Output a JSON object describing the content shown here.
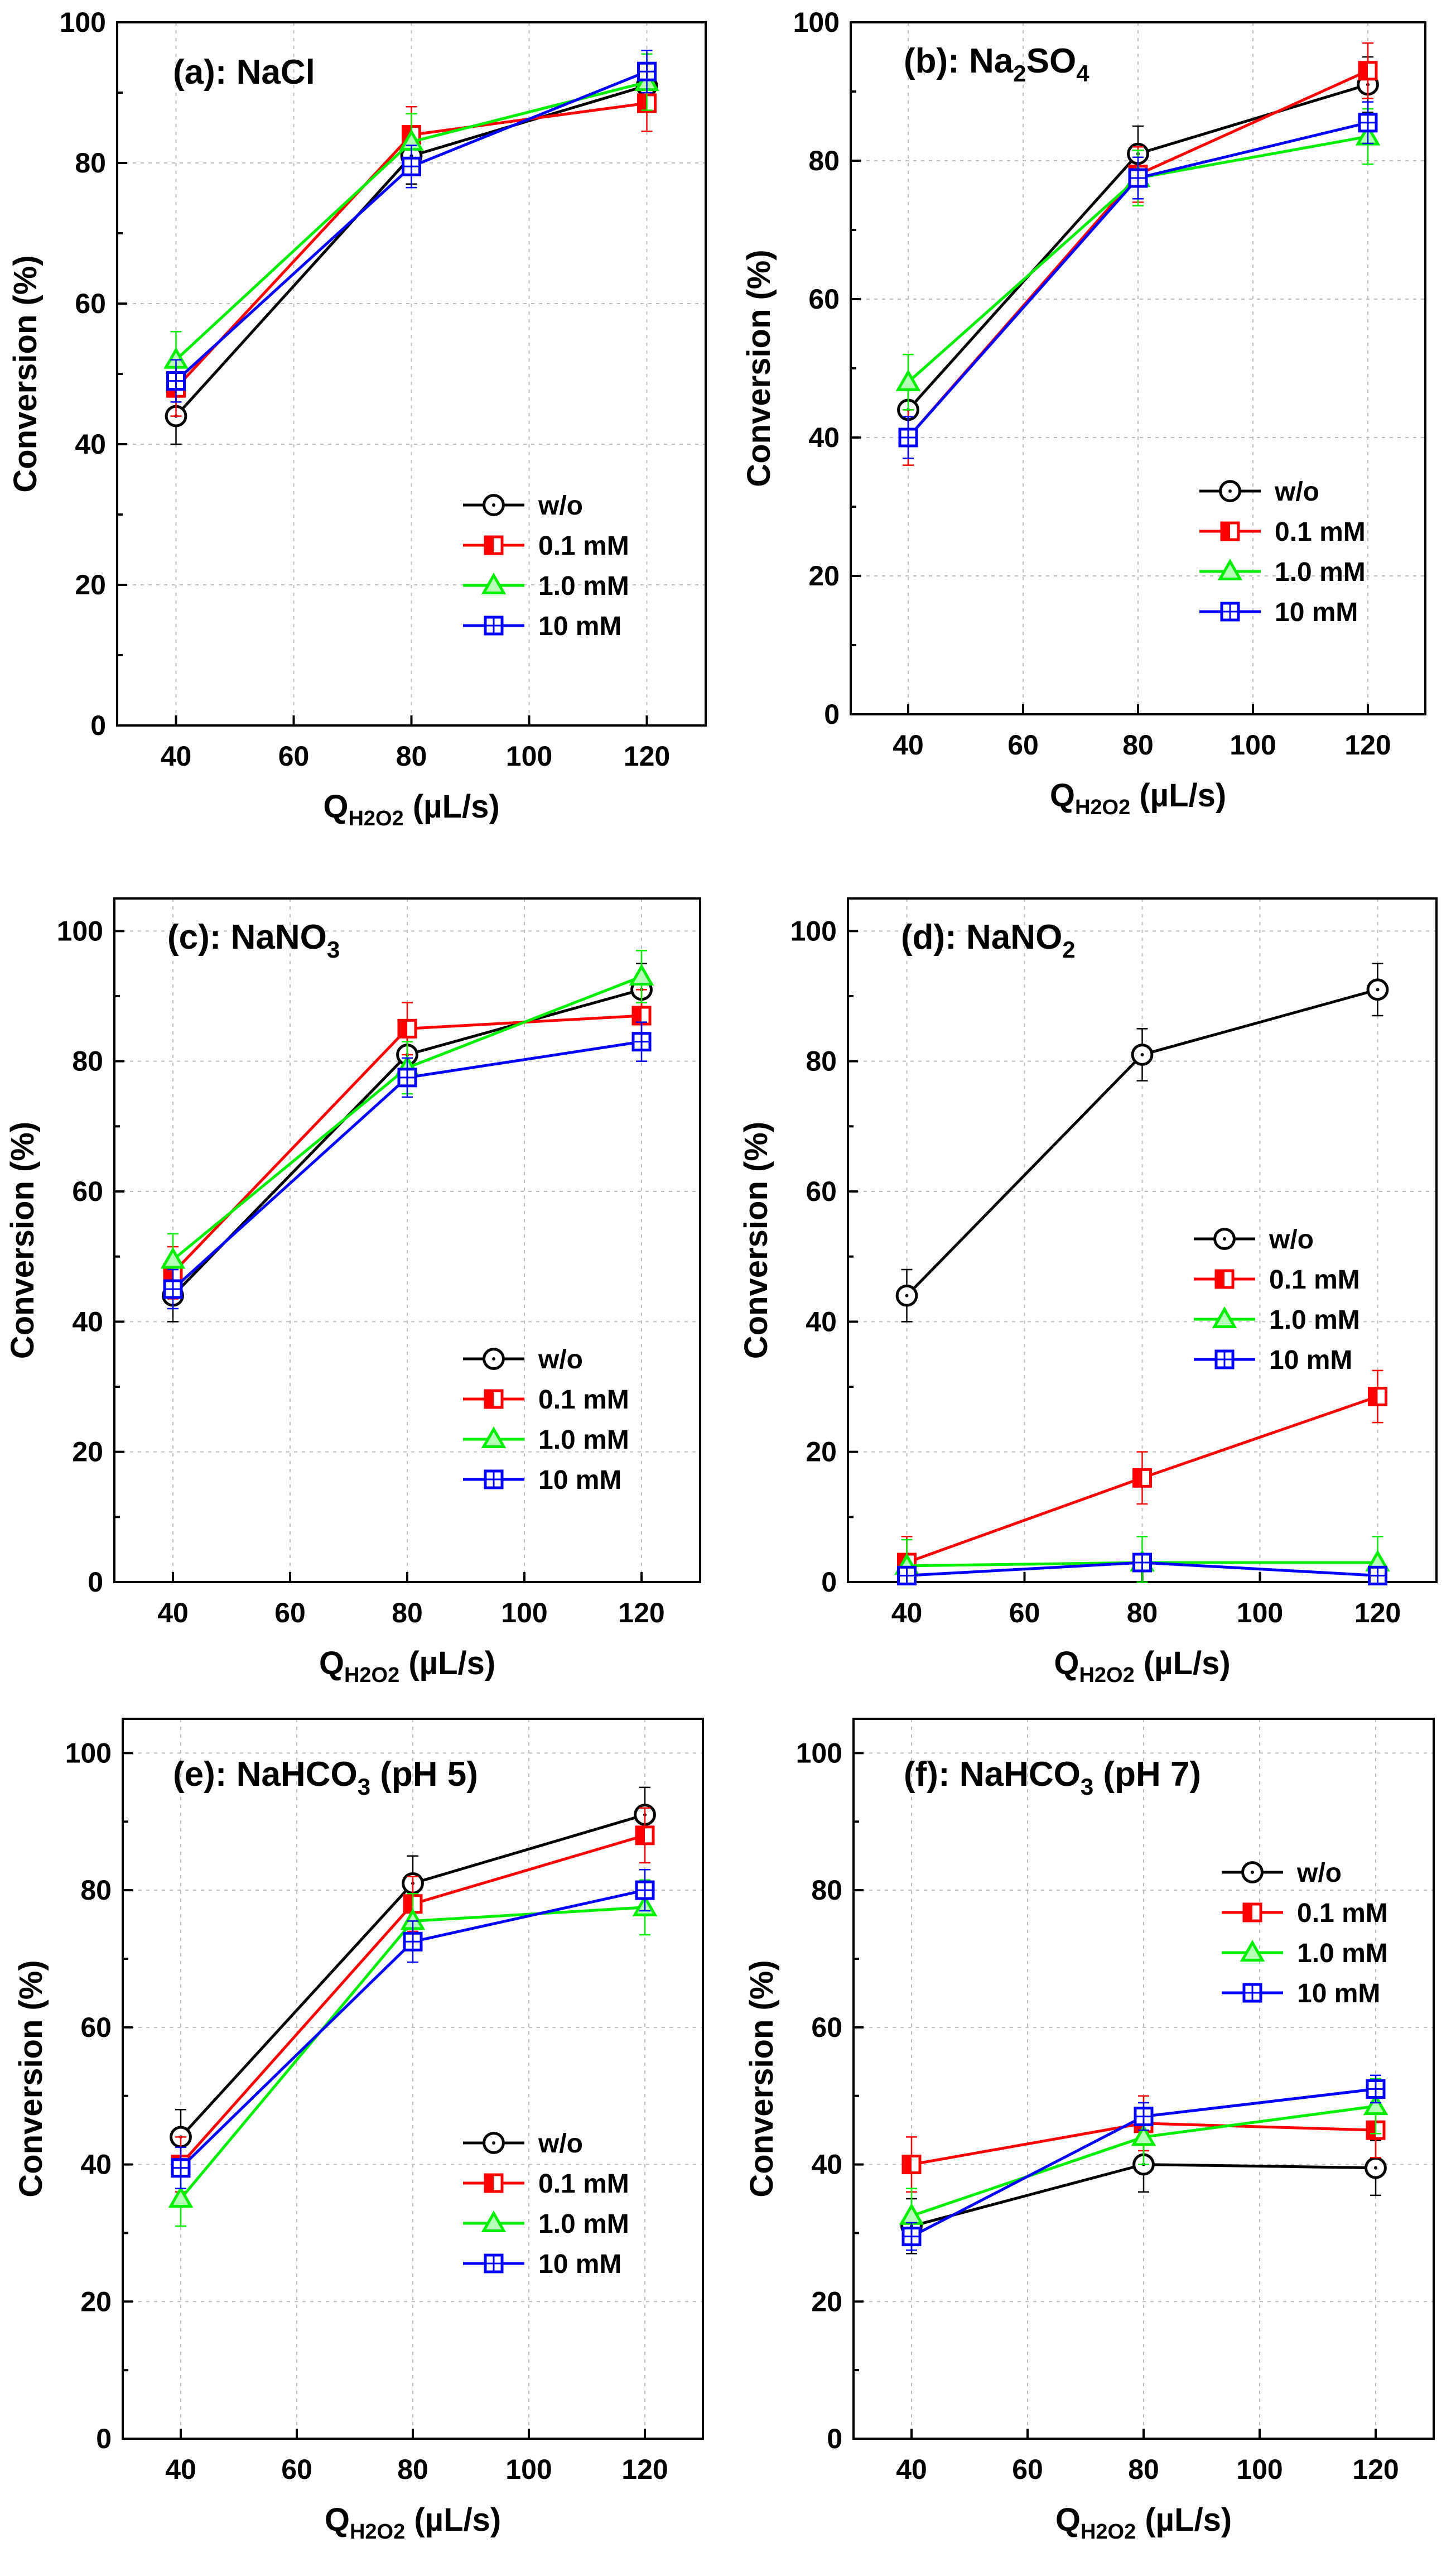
{
  "chart_data": [
    {
      "type": "line",
      "title_main": "(a): NaCl",
      "title_sub": "",
      "title_tail": "",
      "xlabel_prefix": "Q",
      "xlabel_sub": "H2O2",
      "xlabel_units": " (µL/s)",
      "ylabel": "Conversion (%)",
      "x": [
        40,
        80,
        120
      ],
      "xticks": [
        40,
        60,
        80,
        100,
        120
      ],
      "yticks": [
        0,
        20,
        40,
        60,
        80,
        100
      ],
      "xlim": [
        30,
        130
      ],
      "ylim": [
        0,
        100
      ],
      "grid": true,
      "legend_position": "bottom-right",
      "series": [
        {
          "name": "w/o",
          "color": "#000000",
          "marker": "circle",
          "values": [
            44,
            81,
            91
          ],
          "errors": [
            4,
            4,
            3
          ]
        },
        {
          "name": "0.1 mM",
          "color": "#ff0000",
          "marker": "square-half",
          "values": [
            48,
            84,
            88.5
          ],
          "errors": [
            4,
            4,
            4
          ]
        },
        {
          "name": "1.0 mM",
          "color": "#00ee00",
          "marker": "triangle",
          "values": [
            52,
            83,
            91.5
          ],
          "errors": [
            4,
            4,
            4
          ]
        },
        {
          "name": "10  mM",
          "color": "#0000ff",
          "marker": "square-cross",
          "values": [
            49,
            79.5,
            93
          ],
          "errors": [
            3,
            3,
            3
          ]
        }
      ]
    },
    {
      "type": "line",
      "title_main": "(b): Na",
      "title_sub": "2",
      "title_tail": "SO4",
      "xlabel_prefix": "Q",
      "xlabel_sub": "H2O2",
      "xlabel_units": " (µL/s)",
      "ylabel": "Conversion (%)",
      "x": [
        40,
        80,
        120
      ],
      "xticks": [
        40,
        60,
        80,
        100,
        120
      ],
      "yticks": [
        0,
        20,
        40,
        60,
        80,
        100
      ],
      "xlim": [
        30,
        130
      ],
      "ylim": [
        0,
        100
      ],
      "grid": true,
      "legend_position": "bottom-right",
      "series": [
        {
          "name": "w/o",
          "color": "#000000",
          "marker": "circle",
          "values": [
            44,
            81,
            91
          ],
          "errors": [
            4,
            4,
            4
          ]
        },
        {
          "name": "0.1 mM",
          "color": "#ff0000",
          "marker": "square-half",
          "values": [
            40,
            78,
            93
          ],
          "errors": [
            4,
            4,
            4
          ]
        },
        {
          "name": "1.0 mM",
          "color": "#00ee00",
          "marker": "triangle",
          "values": [
            48,
            77.5,
            83.5
          ],
          "errors": [
            4,
            4,
            4
          ]
        },
        {
          "name": "10  mM",
          "color": "#0000ff",
          "marker": "square-cross",
          "values": [
            40,
            77.5,
            85.5
          ],
          "errors": [
            3,
            3,
            3
          ]
        }
      ]
    },
    {
      "type": "line",
      "title_main": "(c): NaNO",
      "title_sub": "3",
      "title_tail": "",
      "xlabel_prefix": "Q",
      "xlabel_sub": "H2O2",
      "xlabel_units": " (µL/s)",
      "ylabel": "Conversion (%)",
      "x": [
        40,
        80,
        120
      ],
      "xticks": [
        40,
        60,
        80,
        100,
        120
      ],
      "yticks": [
        0,
        20,
        40,
        60,
        80,
        100
      ],
      "xlim": [
        30,
        130
      ],
      "ylim": [
        0,
        105
      ],
      "grid": true,
      "legend_position": "bottom-right",
      "series": [
        {
          "name": "w/o",
          "color": "#000000",
          "marker": "circle",
          "values": [
            44,
            81,
            91
          ],
          "errors": [
            4,
            4,
            4
          ]
        },
        {
          "name": "0.1 mM",
          "color": "#ff0000",
          "marker": "square-half",
          "values": [
            47.5,
            85,
            87
          ],
          "errors": [
            4,
            4,
            4
          ]
        },
        {
          "name": "1.0 mM",
          "color": "#00ee00",
          "marker": "triangle",
          "values": [
            49.5,
            79,
            93
          ],
          "errors": [
            4,
            4,
            4
          ]
        },
        {
          "name": "10  mM",
          "color": "#0000ff",
          "marker": "square-cross",
          "values": [
            45,
            77.5,
            83
          ],
          "errors": [
            3,
            3,
            3
          ]
        }
      ]
    },
    {
      "type": "line",
      "title_main": "(d): NaNO",
      "title_sub": "2",
      "title_tail": "",
      "xlabel_prefix": "Q",
      "xlabel_sub": "H2O2",
      "xlabel_units": " (µL/s)",
      "ylabel": "Conversion (%)",
      "x": [
        40,
        80,
        120
      ],
      "xticks": [
        40,
        60,
        80,
        100,
        120
      ],
      "yticks": [
        0,
        20,
        40,
        60,
        80,
        100
      ],
      "xlim": [
        30,
        130
      ],
      "ylim": [
        0,
        105
      ],
      "grid": true,
      "legend_position": "center-right",
      "series": [
        {
          "name": "w/o",
          "color": "#000000",
          "marker": "circle",
          "values": [
            44,
            81,
            91
          ],
          "errors": [
            4,
            4,
            4
          ]
        },
        {
          "name": "0.1 mM",
          "color": "#ff0000",
          "marker": "square-half",
          "values": [
            3,
            16,
            28.5
          ],
          "errors": [
            4,
            4,
            4
          ]
        },
        {
          "name": "1.0 mM",
          "color": "#00ee00",
          "marker": "triangle",
          "values": [
            2.5,
            3,
            3
          ],
          "errors": [
            4,
            4,
            4
          ]
        },
        {
          "name": "10  mM",
          "color": "#0000ff",
          "marker": "square-cross",
          "values": [
            1,
            3,
            1
          ],
          "errors": [
            1,
            1,
            1
          ]
        }
      ]
    },
    {
      "type": "line",
      "title_main": "(e): NaHCO",
      "title_sub": "3",
      "title_tail": " (pH 5)",
      "xlabel_prefix": "Q",
      "xlabel_sub": "H2O2",
      "xlabel_units": " (µL/s)",
      "ylabel": "Conversion (%)",
      "x": [
        40,
        80,
        120
      ],
      "xticks": [
        40,
        60,
        80,
        100,
        120
      ],
      "yticks": [
        0,
        20,
        40,
        60,
        80,
        100
      ],
      "xlim": [
        30,
        130
      ],
      "ylim": [
        0,
        105
      ],
      "grid": true,
      "legend_position": "bottom-right",
      "series": [
        {
          "name": "w/o",
          "color": "#000000",
          "marker": "circle",
          "values": [
            44,
            81,
            91
          ],
          "errors": [
            4,
            4,
            4
          ]
        },
        {
          "name": "0.1 mM",
          "color": "#ff0000",
          "marker": "square-half",
          "values": [
            40,
            78,
            88
          ],
          "errors": [
            4,
            4,
            4
          ]
        },
        {
          "name": "1.0 mM",
          "color": "#00ee00",
          "marker": "triangle",
          "values": [
            35,
            75.5,
            77.5
          ],
          "errors": [
            4,
            4,
            4
          ]
        },
        {
          "name": "10  mM",
          "color": "#0000ff",
          "marker": "square-cross",
          "values": [
            39.5,
            72.5,
            80
          ],
          "errors": [
            3,
            3,
            3
          ]
        }
      ]
    },
    {
      "type": "line",
      "title_main": "(f): NaHCO",
      "title_sub": "3",
      "title_tail": " (pH 7)",
      "xlabel_prefix": "Q",
      "xlabel_sub": "H2O2",
      "xlabel_units": " (µL/s)",
      "ylabel": "Conversion (%)",
      "x": [
        40,
        80,
        120
      ],
      "xticks": [
        40,
        60,
        80,
        100,
        120
      ],
      "yticks": [
        0,
        20,
        40,
        60,
        80,
        100
      ],
      "xlim": [
        30,
        130
      ],
      "ylim": [
        0,
        105
      ],
      "grid": true,
      "legend_position": "top-right",
      "series": [
        {
          "name": "w/o",
          "color": "#000000",
          "marker": "circle",
          "values": [
            31,
            40,
            39.5
          ],
          "errors": [
            4,
            4,
            4
          ]
        },
        {
          "name": "0.1 mM",
          "color": "#ff0000",
          "marker": "square-half",
          "values": [
            40,
            46,
            45
          ],
          "errors": [
            4,
            4,
            4
          ]
        },
        {
          "name": "1.0 mM",
          "color": "#00ee00",
          "marker": "triangle",
          "values": [
            32.5,
            44,
            48.5
          ],
          "errors": [
            4,
            4,
            4
          ]
        },
        {
          "name": "10  mM",
          "color": "#0000ff",
          "marker": "square-cross",
          "values": [
            29.5,
            47,
            51
          ],
          "errors": [
            2,
            2,
            2
          ]
        }
      ]
    }
  ]
}
